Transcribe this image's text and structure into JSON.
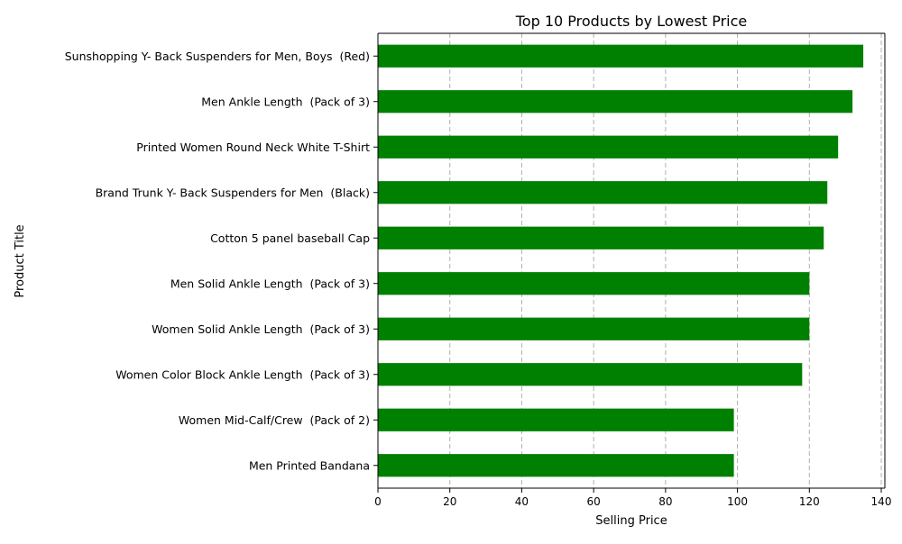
{
  "chart_data": {
    "type": "bar",
    "orientation": "horizontal",
    "title": "Top 10 Products by Lowest Price",
    "xlabel": "Selling Price",
    "ylabel": "Product Title",
    "xlim": [
      0,
      141
    ],
    "xticks": [
      0,
      20,
      40,
      60,
      80,
      100,
      120,
      140
    ],
    "grid": "x-axis dashed",
    "bar_color": "#008000",
    "categories": [
      "Sunshopping Y- Back Suspenders for Men, Boys  (Red)",
      "Men Ankle Length  (Pack of 3)",
      "Printed Women Round Neck White T-Shirt",
      "Brand Trunk Y- Back Suspenders for Men  (Black)",
      "Cotton 5 panel baseball Cap",
      "Men Solid Ankle Length  (Pack of 3)",
      "Women Solid Ankle Length  (Pack of 3)",
      "Women Color Block Ankle Length  (Pack of 3)",
      "Women Mid-Calf/Crew  (Pack of 2)",
      "Men Printed Bandana"
    ],
    "values": [
      135,
      132,
      128,
      125,
      124,
      120,
      120,
      118,
      99,
      99
    ]
  }
}
